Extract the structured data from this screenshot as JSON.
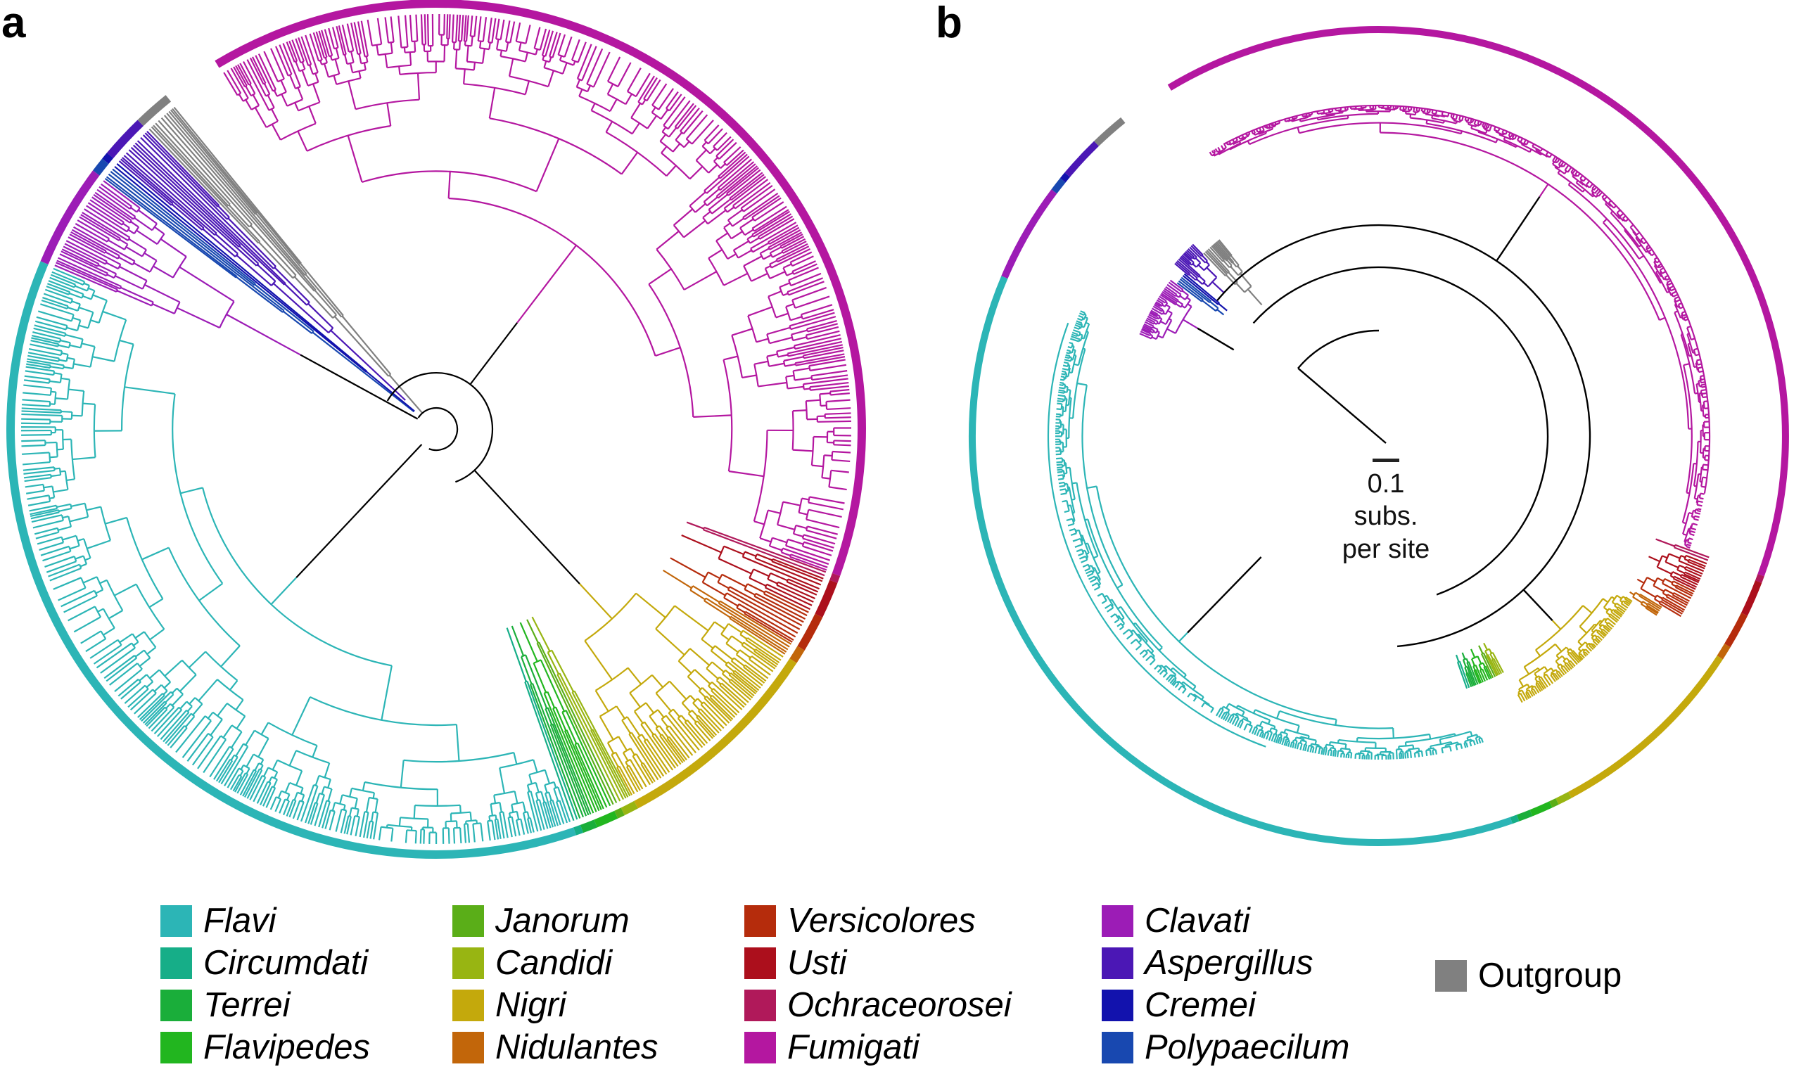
{
  "panels": {
    "a": "a",
    "b": "b"
  },
  "scale_bar": {
    "value": "0.1",
    "unit_line1": "subs.",
    "unit_line2": "per site"
  },
  "legend": [
    {
      "key": "flavi",
      "label": "Flavi",
      "color": "#2cb5b6"
    },
    {
      "key": "circumdati",
      "label": "Circumdati",
      "color": "#16ae88"
    },
    {
      "key": "terrei",
      "label": "Terrei",
      "color": "#1aae3a"
    },
    {
      "key": "flavipedes",
      "label": "Flavipedes",
      "color": "#22b61f"
    },
    {
      "key": "janorum",
      "label": "Janorum",
      "color": "#5aae18"
    },
    {
      "key": "candidi",
      "label": "Candidi",
      "color": "#98b512"
    },
    {
      "key": "nigri",
      "label": "Nigri",
      "color": "#c4a90c"
    },
    {
      "key": "nidulantes",
      "label": "Nidulantes",
      "color": "#c2660a"
    },
    {
      "key": "versicolores",
      "label": "Versicolores",
      "color": "#b52c0c"
    },
    {
      "key": "usti",
      "label": "Usti",
      "color": "#ac0f1c"
    },
    {
      "key": "ochraceorosei",
      "label": "Ochraceorosei",
      "color": "#b0195a"
    },
    {
      "key": "fumigati",
      "label": "Fumigati",
      "color": "#b417a0"
    },
    {
      "key": "clavati",
      "label": "Clavati",
      "color": "#9c1cb6"
    },
    {
      "key": "aspergillus",
      "label": "Aspergillus",
      "color": "#4b17b5"
    },
    {
      "key": "cremei",
      "label": "Cremei",
      "color": "#1212ad"
    },
    {
      "key": "polypaecilum",
      "label": "Polypaecilum",
      "color": "#1848b0"
    },
    {
      "key": "outgroup",
      "label": "Outgroup",
      "color": "#808080"
    }
  ]
}
